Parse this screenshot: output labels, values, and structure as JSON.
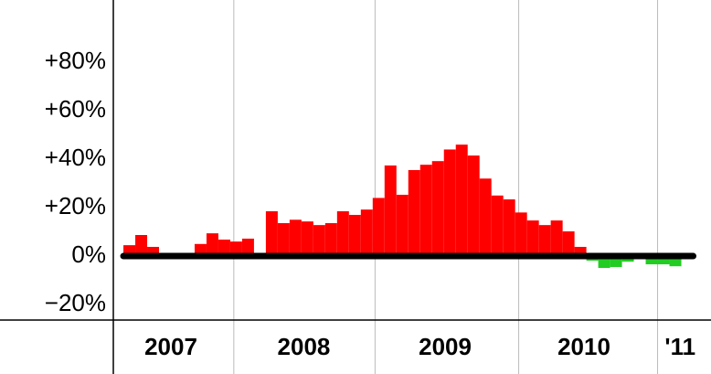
{
  "chart_data": {
    "type": "bar",
    "categories": [
      null,
      null,
      null,
      null,
      null,
      null,
      null,
      null,
      null,
      null,
      null,
      null,
      null,
      null,
      null,
      null,
      null,
      null,
      null,
      null,
      null,
      null,
      null,
      null,
      null,
      null,
      null,
      null,
      null,
      null,
      null,
      null,
      null,
      null,
      null,
      null,
      null,
      null,
      null,
      null,
      null,
      null,
      null,
      null,
      null,
      null,
      null,
      null
    ],
    "values": [
      4.5,
      8.7,
      3.8,
      0,
      0,
      0,
      5,
      9.4,
      6.8,
      6,
      7.2,
      0,
      18.5,
      13.6,
      15,
      14.3,
      12.8,
      13.6,
      18.5,
      17,
      19.2,
      24,
      37.4,
      25.3,
      35.5,
      37.7,
      39.2,
      44,
      46,
      41.5,
      32,
      25,
      23.4,
      18,
      14.7,
      12.8,
      14.7,
      10.2,
      3.8,
      -1.9,
      -4.9,
      -4.5,
      -2.3,
      0,
      -3.4,
      -3.4,
      -4.2,
      -1
    ],
    "colors": {
      "positive": "#ff0000",
      "negative": "#22cc22"
    },
    "ylim": [
      -26.4,
      105.7
    ],
    "yticks": [
      {
        "value": -20,
        "label": "−20%"
      },
      {
        "value": 0,
        "label": "0%"
      },
      {
        "value": 20,
        "label": "+20%"
      },
      {
        "value": 40,
        "label": "+40%"
      },
      {
        "value": 60,
        "label": "+60%"
      },
      {
        "value": 80,
        "label": "+80%"
      }
    ],
    "xlim": [
      -0.85,
      49.5
    ],
    "xticks": [
      {
        "value": 4.0,
        "label": "2007"
      },
      {
        "value": 15.2,
        "label": "2008"
      },
      {
        "value": 27.1,
        "label": "2009"
      },
      {
        "value": 38.8,
        "label": "2010"
      },
      {
        "value": 46.9,
        "label": "'11"
      }
    ],
    "xgrid": [
      9.3,
      21.2,
      33.3,
      45
    ]
  }
}
